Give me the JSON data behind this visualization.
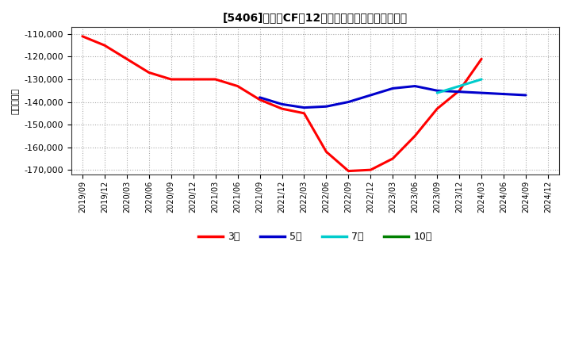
{
  "title": "[5406]　投賄CFの12か月移動合計の平均値の推移",
  "ylabel": "（百万円）",
  "background_color": "#ffffff",
  "plot_bg_color": "#ffffff",
  "grid_color": "#aaaaaa",
  "ylim": [
    -172000,
    -107000
  ],
  "yticks": [
    -170000,
    -160000,
    -150000,
    -140000,
    -130000,
    -120000,
    -110000
  ],
  "series": {
    "3year": {
      "color": "#ff0000",
      "label": "3年",
      "x": [
        "2019/09",
        "2019/12",
        "2020/03",
        "2020/06",
        "2020/09",
        "2020/12",
        "2021/03",
        "2021/06",
        "2021/09",
        "2021/12",
        "2022/03",
        "2022/06",
        "2022/09",
        "2022/12",
        "2023/03",
        "2023/06",
        "2023/09",
        "2023/12",
        "2024/03"
      ],
      "y": [
        -111000,
        -115000,
        -121000,
        -127000,
        -130000,
        -130000,
        -130000,
        -133000,
        -139000,
        -143000,
        -145000,
        -162000,
        -170500,
        -170000,
        -165000,
        -155000,
        -143000,
        -135000,
        -121000
      ]
    },
    "5year": {
      "color": "#0000cc",
      "label": "5年",
      "x": [
        "2021/09",
        "2021/12",
        "2022/03",
        "2022/06",
        "2022/09",
        "2022/12",
        "2023/03",
        "2023/06",
        "2023/09",
        "2023/12",
        "2024/03",
        "2024/06",
        "2024/09"
      ],
      "y": [
        -138000,
        -141000,
        -142500,
        -142000,
        -140000,
        -137000,
        -134000,
        -133000,
        -135000,
        -135500,
        -136000,
        -136500,
        -137000
      ]
    },
    "7year": {
      "color": "#00cccc",
      "label": "7年",
      "x": [
        "2023/09",
        "2023/12",
        "2024/03"
      ],
      "y": [
        -136000,
        -133000,
        -130000
      ]
    },
    "10year": {
      "color": "#008000",
      "label": "10年",
      "x": [],
      "y": []
    }
  },
  "xtick_labels": [
    "2019/09",
    "2019/12",
    "2020/03",
    "2020/06",
    "2020/09",
    "2020/12",
    "2021/03",
    "2021/06",
    "2021/09",
    "2021/12",
    "2022/03",
    "2022/06",
    "2022/09",
    "2022/12",
    "2023/03",
    "2023/06",
    "2023/09",
    "2023/12",
    "2024/03",
    "2024/06",
    "2024/09",
    "2024/12"
  ]
}
